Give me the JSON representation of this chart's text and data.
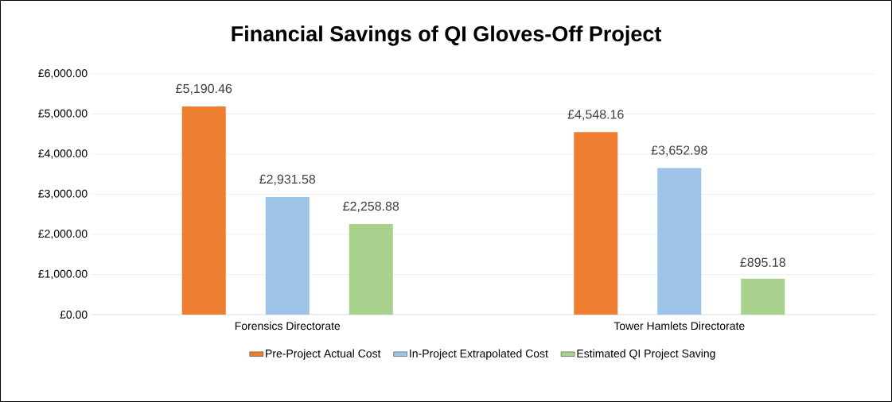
{
  "chart_data": {
    "type": "bar",
    "title": "Financial Savings of QI Gloves-Off Project",
    "categories": [
      "Forensics Directorate",
      "Tower Hamlets Directorate"
    ],
    "series": [
      {
        "name": "Pre-Project Actual Cost",
        "color": "#ed7d31",
        "values": [
          5190.46,
          4548.16
        ],
        "value_labels": [
          "£5,190.46",
          "£4,548.16"
        ]
      },
      {
        "name": "In-Project Extrapolated Cost",
        "color": "#9dc3e6",
        "values": [
          2931.58,
          3652.98
        ],
        "value_labels": [
          "£2,931.58",
          "£3,652.98"
        ]
      },
      {
        "name": "Estimated QI Project Saving",
        "color": "#a9d18e",
        "values": [
          2258.88,
          895.18
        ],
        "value_labels": [
          "£2,258.88",
          "£895.18"
        ]
      }
    ],
    "ylim": [
      0,
      6000
    ],
    "yticks": [
      {
        "value": 0,
        "label": "£0.00"
      },
      {
        "value": 1000,
        "label": "£1,000.00"
      },
      {
        "value": 2000,
        "label": "£2,000.00"
      },
      {
        "value": 3000,
        "label": "£3,000.00"
      },
      {
        "value": 4000,
        "label": "£4,000.00"
      },
      {
        "value": 5000,
        "label": "£5,000.00"
      },
      {
        "value": 6000,
        "label": "£6,000.00"
      }
    ],
    "grid": "y",
    "legend": "bottom"
  }
}
